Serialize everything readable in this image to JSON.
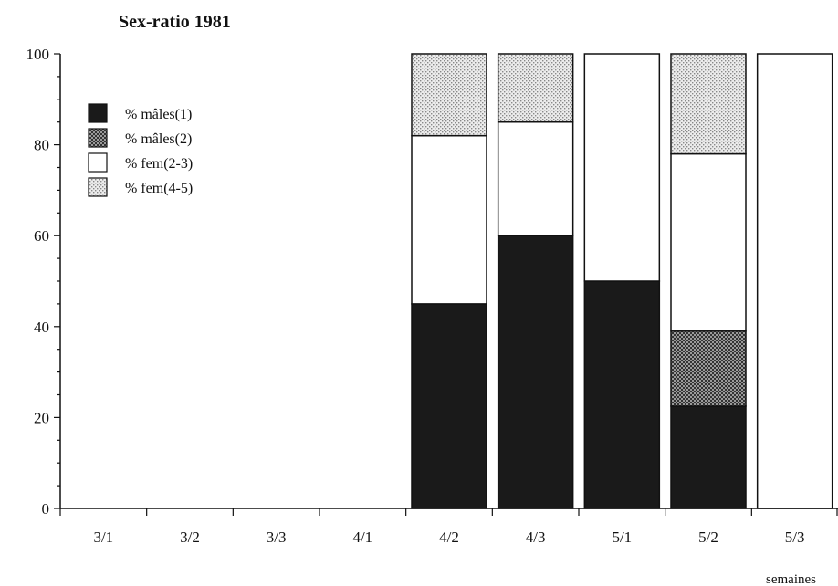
{
  "chart_data": {
    "type": "bar",
    "stacked": true,
    "title": "Sex-ratio 1981",
    "xlabel": "semaines",
    "ylabel": "",
    "ylim": [
      0,
      100
    ],
    "yticks": [
      0,
      20,
      40,
      60,
      80,
      100
    ],
    "categories": [
      "3/1",
      "3/2",
      "3/3",
      "4/1",
      "4/2",
      "4/3",
      "5/1",
      "5/2",
      "5/3"
    ],
    "series": [
      {
        "name": "% mâles(1)",
        "fill": "solid",
        "color": "#1a1a1a",
        "values": [
          0,
          0,
          0,
          0,
          45,
          60,
          50,
          22.5,
          0
        ]
      },
      {
        "name": "% mâles(2)",
        "fill": "crosshatch",
        "color": "#555555",
        "values": [
          0,
          0,
          0,
          0,
          0,
          0,
          0,
          16.5,
          0
        ]
      },
      {
        "name": "% fem(2-3)",
        "fill": "white",
        "color": "#ffffff",
        "values": [
          0,
          0,
          0,
          0,
          37,
          25,
          50,
          39,
          100
        ]
      },
      {
        "name": "% fem(4-5)",
        "fill": "dotted",
        "color": "#cccccc",
        "values": [
          0,
          0,
          0,
          0,
          18,
          15,
          0,
          22,
          0
        ]
      }
    ],
    "legend_position": "top-left",
    "grid": false
  }
}
